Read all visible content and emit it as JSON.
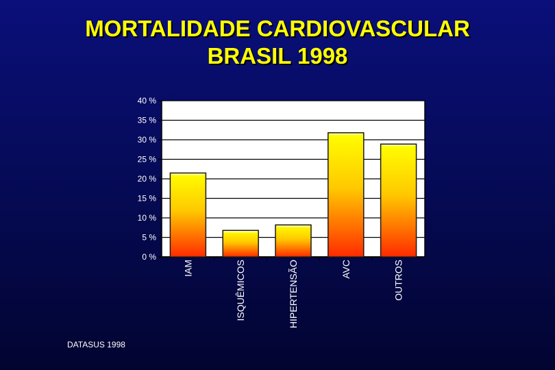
{
  "title": [
    "MORTALIDADE CARDIOVASCULAR",
    "BRASIL 1998"
  ],
  "source": "DATASUS 1998",
  "colors": {
    "background": "#050a52",
    "title": "#ffff00",
    "bar_top": "#ffff00",
    "bar_bottom": "#ff2a00",
    "plot_bg": "#ffffff"
  },
  "chart_data": {
    "type": "bar",
    "title": "MORTALIDADE CARDIOVASCULAR BRASIL 1998",
    "categories": [
      "IAM",
      "ISQUÊMICOS",
      "HIPERTENSÃO",
      "AVC",
      "OUTROS"
    ],
    "values": [
      21.5,
      6.8,
      8.2,
      31.8,
      28.9
    ],
    "ylim": [
      0,
      40
    ],
    "yticks": [
      0,
      5,
      10,
      15,
      20,
      25,
      30,
      35,
      40
    ],
    "ytick_labels": [
      "0 %",
      "5 %",
      "10 %",
      "15 %",
      "20 %",
      "25 %",
      "30 %",
      "35 %",
      "40 %"
    ],
    "xlabel": "",
    "ylabel": "",
    "grid": true,
    "legend": "none"
  }
}
